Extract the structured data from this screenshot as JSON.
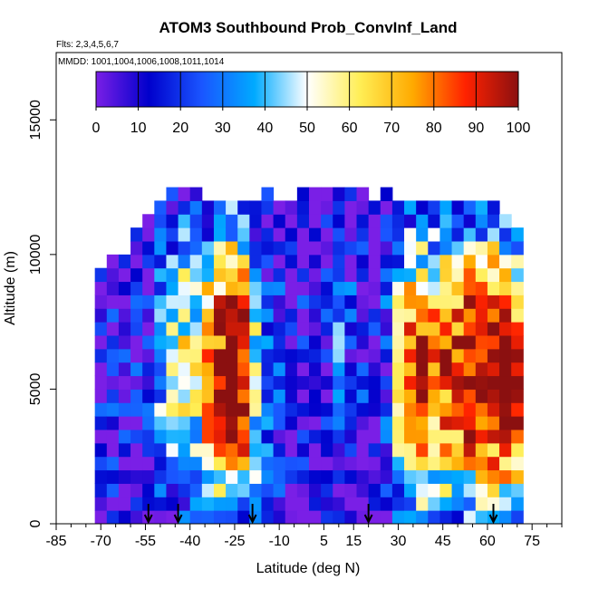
{
  "chart_data": {
    "type": "heatmap",
    "title": "ATOM3 Southbound Prob_ConvInf_Land",
    "flights_text": "Flts: 2,3,4,5,6,7",
    "dates_text": "MMDD: 1001,1004,1006,1008,1011,1014",
    "xlabel": "Latitude (deg N)",
    "ylabel": "Altitude (m)",
    "xlim": [
      -85,
      85
    ],
    "ylim": [
      0,
      17500
    ],
    "x_ticks": [
      -85,
      -70,
      -55,
      -40,
      -25,
      -10,
      5,
      15,
      30,
      45,
      60,
      75
    ],
    "y_ticks": [
      0,
      5000,
      10000,
      15000
    ],
    "colorbar": {
      "ticks": [
        0,
        10,
        20,
        30,
        40,
        50,
        60,
        70,
        80,
        90,
        100
      ],
      "colors": [
        "#7a1fe6",
        "#0000cc",
        "#1a55ff",
        "#00aaff",
        "#ffffff",
        "#ffee55",
        "#ffaa00",
        "#ff2200",
        "#8b1010"
      ]
    },
    "arrow_latitudes": [
      -54,
      -44,
      -19,
      20,
      62
    ],
    "columns": [
      {
        "lat": -70,
        "top": 9500,
        "val": 8
      },
      {
        "lat": -66,
        "top": 10000,
        "val": 10
      },
      {
        "lat": -62,
        "top": 10000,
        "val": 8
      },
      {
        "lat": -58,
        "top": 11000,
        "val": 9
      },
      {
        "lat": -54,
        "top": 11500,
        "val": 12
      },
      {
        "lat": -50,
        "top": 12000,
        "val": 30
      },
      {
        "lat": -46,
        "top": 12500,
        "val": 40
      },
      {
        "lat": -42,
        "top": 12500,
        "val": 45
      },
      {
        "lat": -38,
        "top": 12500,
        "val": 42
      },
      {
        "lat": -34,
        "top": 12000,
        "val": 60
      },
      {
        "lat": -30,
        "top": 12000,
        "val": 70
      },
      {
        "lat": -26,
        "top": 12000,
        "val": 85
      },
      {
        "lat": -22,
        "top": 12000,
        "val": 75
      },
      {
        "lat": -18,
        "top": 12000,
        "val": 40
      },
      {
        "lat": -14,
        "top": 12500,
        "val": 20
      },
      {
        "lat": -10,
        "top": 12000,
        "val": 15
      },
      {
        "lat": -6,
        "top": 12000,
        "val": 10
      },
      {
        "lat": -2,
        "top": 12500,
        "val": 8
      },
      {
        "lat": 2,
        "top": 12500,
        "val": 6
      },
      {
        "lat": 6,
        "top": 12500,
        "val": 8
      },
      {
        "lat": 10,
        "top": 12500,
        "val": 20
      },
      {
        "lat": 14,
        "top": 12500,
        "val": 15
      },
      {
        "lat": 18,
        "top": 12500,
        "val": 10
      },
      {
        "lat": 22,
        "top": 12000,
        "val": 8
      },
      {
        "lat": 26,
        "top": 12500,
        "val": 15
      },
      {
        "lat": 30,
        "top": 12000,
        "val": 45
      },
      {
        "lat": 34,
        "top": 12000,
        "val": 65
      },
      {
        "lat": 38,
        "top": 12000,
        "val": 70
      },
      {
        "lat": 42,
        "top": 12000,
        "val": 60
      },
      {
        "lat": 46,
        "top": 12000,
        "val": 65
      },
      {
        "lat": 50,
        "top": 12000,
        "val": 70
      },
      {
        "lat": 54,
        "top": 12000,
        "val": 75
      },
      {
        "lat": 58,
        "top": 12000,
        "val": 70
      },
      {
        "lat": 62,
        "top": 12000,
        "val": 80
      },
      {
        "lat": 66,
        "top": 11500,
        "val": 85
      },
      {
        "lat": 70,
        "top": 11000,
        "val": 75
      }
    ]
  }
}
